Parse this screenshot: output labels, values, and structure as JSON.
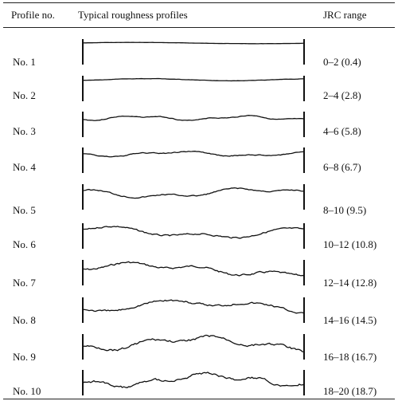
{
  "header": {
    "profile_no": "Profile no.",
    "profiles": "Typical roughness profiles",
    "jrc_range": "JRC range"
  },
  "rows": [
    {
      "no": "No. 1",
      "jrc": "0–2 (0.4)"
    },
    {
      "no": "No. 2",
      "jrc": "2–4 (2.8)"
    },
    {
      "no": "No. 3",
      "jrc": "4–6 (5.8)"
    },
    {
      "no": "No. 4",
      "jrc": "6–8 (6.7)"
    },
    {
      "no": "No. 5",
      "jrc": "8–10 (9.5)"
    },
    {
      "no": "No. 6",
      "jrc": "10–12 (10.8)"
    },
    {
      "no": "No. 7",
      "jrc": "12–14 (12.8)"
    },
    {
      "no": "No. 8",
      "jrc": "14–16 (14.5)"
    },
    {
      "no": "No. 9",
      "jrc": "16–18 (16.7)"
    },
    {
      "no": "No. 10",
      "jrc": "18–20 (18.7)"
    }
  ]
}
